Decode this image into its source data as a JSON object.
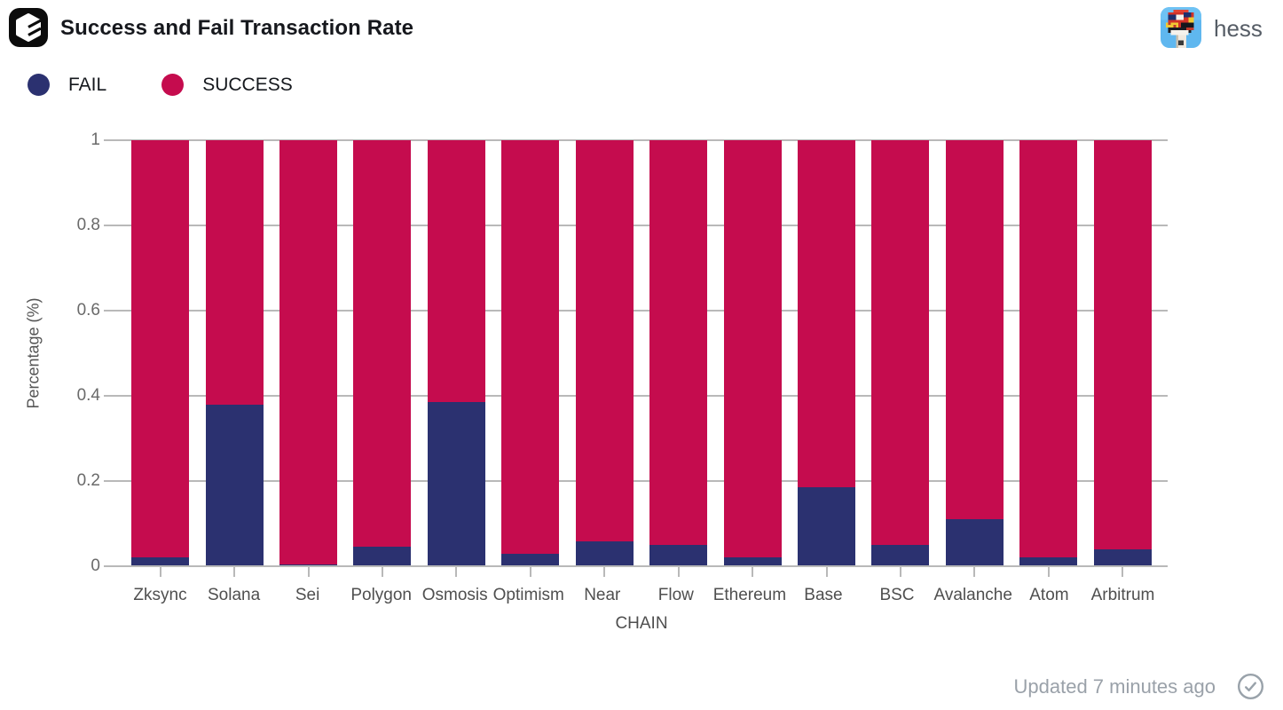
{
  "header": {
    "title": "Success and Fail Transaction Rate",
    "user": "hess"
  },
  "legend": {
    "items": [
      {
        "label": "FAIL",
        "color": "#2b3170"
      },
      {
        "label": "SUCCESS",
        "color": "#c50c4e"
      }
    ]
  },
  "footer": {
    "updated": "Updated 7 minutes ago"
  },
  "chart_data": {
    "type": "bar",
    "stacked": true,
    "title": "Success and Fail Transaction Rate",
    "categories": [
      "Zksync",
      "Solana",
      "Sei",
      "Polygon",
      "Osmosis",
      "Optimism",
      "Near",
      "Flow",
      "Ethereum",
      "Base",
      "BSC",
      "Avalanche",
      "Atom",
      "Arbitrum"
    ],
    "series": [
      {
        "name": "FAIL",
        "color": "#2b3170",
        "values": [
          0.02,
          0.38,
          0.005,
          0.045,
          0.385,
          0.03,
          0.058,
          0.05,
          0.02,
          0.185,
          0.05,
          0.11,
          0.02,
          0.04
        ]
      },
      {
        "name": "SUCCESS",
        "color": "#c50c4e",
        "values": [
          0.98,
          0.62,
          0.995,
          0.955,
          0.615,
          0.97,
          0.942,
          0.95,
          0.98,
          0.815,
          0.95,
          0.89,
          0.98,
          0.96
        ]
      }
    ],
    "xlabel": "CHAIN",
    "ylabel": "Percentage (%)",
    "yticks": [
      0,
      0.2,
      0.4,
      0.6,
      0.8,
      1
    ],
    "ylim": [
      0,
      1
    ],
    "grid": true,
    "gridline_color": "#b9b9b9",
    "legend_position": "top-left"
  }
}
